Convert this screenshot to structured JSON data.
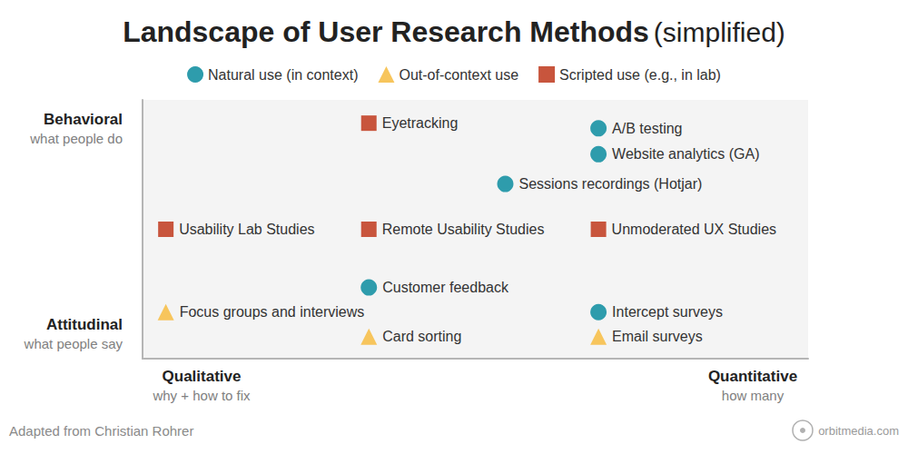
{
  "chart_data": {
    "type": "scatter",
    "title": "Landscape of User Research Methods",
    "title_suffix": "(simplified)",
    "legend": "top",
    "grid": false,
    "tick_labels": false,
    "xlim": [
      0,
      100
    ],
    "ylim": [
      0,
      100
    ],
    "xticks": [],
    "yticks": [],
    "x_ends": [
      {
        "title": "Qualitative",
        "subtitle": "why + how to fix"
      },
      {
        "title": "Quantitative",
        "subtitle": "how many"
      }
    ],
    "y_ends": [
      {
        "title": "Attitudinal",
        "subtitle": "what people say"
      },
      {
        "title": "Behavioral",
        "subtitle": "what people do"
      }
    ],
    "source": "Adapted from Christian Rohrer",
    "watermark": "orbitmedia.com",
    "series": [
      {
        "name": "Natural use (in context)",
        "color": "#2e9cac",
        "marker": "circle",
        "x": [
          68.5,
          68.5,
          54.5,
          34,
          68.5
        ],
        "y": [
          89,
          79,
          67.5,
          27.5,
          18
        ],
        "labels": [
          "A/B testing",
          "Website analytics (GA)",
          "Sessions recordings (Hotjar)",
          "Customer feedback",
          "Intercept surveys"
        ]
      },
      {
        "name": "Out-of-context use",
        "color": "#f7c55c",
        "marker": "triangle",
        "x": [
          3.5,
          34,
          68.5
        ],
        "y": [
          18,
          8.5,
          8.5
        ],
        "labels": [
          "Focus groups and interviews",
          "Card sorting",
          "Email surveys"
        ]
      },
      {
        "name": "Scripted use (e.g., in lab)",
        "color": "#c8553d",
        "marker": "square",
        "x": [
          34,
          3.5,
          34,
          68.5
        ],
        "y": [
          91,
          50,
          50,
          50
        ],
        "labels": [
          "Eyetracking",
          "Usability Lab Studies",
          "Remote Usability Studies",
          "Unmoderated UX Studies"
        ]
      }
    ]
  }
}
